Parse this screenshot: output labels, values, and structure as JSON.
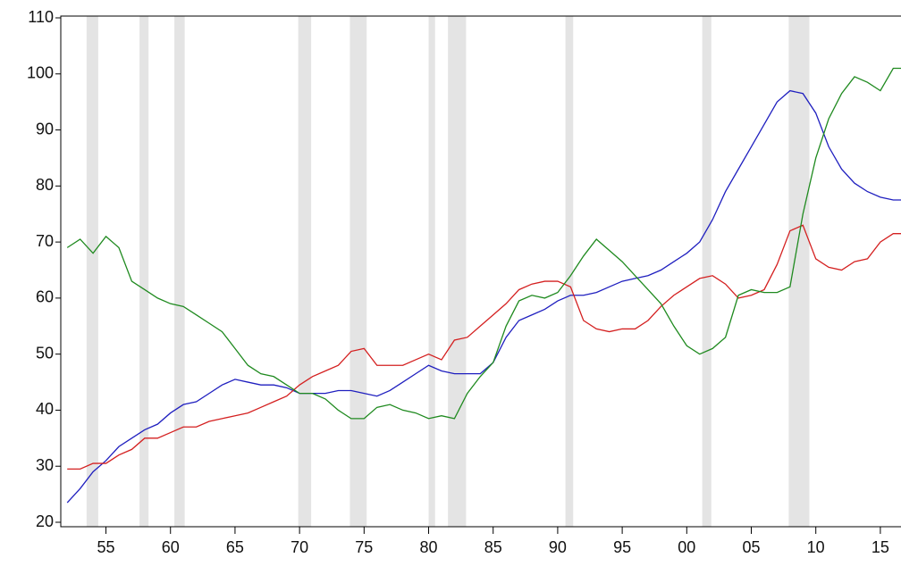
{
  "chart_data": {
    "type": "line",
    "x": [
      1952,
      1953,
      1954,
      1955,
      1956,
      1957,
      1958,
      1959,
      1960,
      1961,
      1962,
      1963,
      1964,
      1965,
      1966,
      1967,
      1968,
      1969,
      1970,
      1971,
      1972,
      1973,
      1974,
      1975,
      1976,
      1977,
      1978,
      1979,
      1980,
      1981,
      1982,
      1983,
      1984,
      1985,
      1986,
      1987,
      1988,
      1989,
      1990,
      1991,
      1992,
      1993,
      1994,
      1995,
      1996,
      1997,
      1998,
      1999,
      2000,
      2001,
      2002,
      2003,
      2004,
      2005,
      2006,
      2007,
      2008,
      2009,
      2010,
      2011,
      2012,
      2013,
      2014,
      2015,
      2016,
      2016.6
    ],
    "series": [
      {
        "color": "#1f1fbf",
        "values": [
          23.5,
          26,
          29,
          31,
          33.5,
          35,
          36.5,
          37.5,
          39.5,
          41,
          41.5,
          43,
          44.5,
          45.5,
          45,
          44.5,
          44.5,
          44,
          43,
          43,
          43,
          43.5,
          43.5,
          43,
          42.5,
          43.5,
          45,
          46.5,
          48,
          47,
          46.5,
          46.5,
          46.5,
          48.5,
          53,
          56,
          57,
          58,
          59.5,
          60.5,
          60.5,
          61,
          62,
          63,
          63.5,
          64,
          65,
          66.5,
          68,
          70,
          74,
          79,
          83,
          87,
          91,
          95,
          97,
          96.5,
          93,
          87,
          83,
          80.5,
          79,
          78,
          77.5,
          77.5
        ]
      },
      {
        "color": "#d42020",
        "values": [
          29.5,
          29.5,
          30.5,
          30.5,
          32,
          33,
          35,
          35,
          36,
          37,
          37,
          38,
          38.5,
          39,
          39.5,
          40.5,
          41.5,
          42.5,
          44.5,
          46,
          47,
          48,
          50.5,
          51,
          48,
          48,
          48,
          49,
          50,
          49,
          52.5,
          53,
          55,
          57,
          59,
          61.5,
          62.5,
          63,
          63,
          62,
          56,
          54.5,
          54,
          54.5,
          54.5,
          56,
          58.5,
          60.5,
          62,
          63.5,
          64,
          62.5,
          60,
          60.5,
          61.5,
          66,
          72,
          73,
          67,
          65.5,
          65,
          66.5,
          67,
          70,
          71.5,
          71.5
        ]
      },
      {
        "color": "#1f8a1f",
        "values": [
          69,
          70.5,
          68,
          71,
          69,
          63,
          61.5,
          60,
          59,
          58.5,
          57,
          55.5,
          54,
          51,
          48,
          46.5,
          46,
          44.5,
          43,
          43,
          42,
          40,
          38.5,
          38.5,
          40.5,
          41,
          40,
          39.5,
          38.5,
          39,
          38.5,
          43,
          46,
          48.5,
          55,
          59.5,
          60.5,
          60,
          61,
          64,
          67.5,
          70.5,
          68.5,
          66.5,
          64,
          61.5,
          59,
          55,
          51.5,
          50,
          51,
          53,
          60.5,
          61.5,
          61,
          61,
          62,
          75,
          85,
          92,
          96.5,
          99.5,
          98.5,
          97,
          101,
          101
        ]
      }
    ],
    "recessions": [
      [
        1953.5,
        1954.4
      ],
      [
        1957.6,
        1958.3
      ],
      [
        1960.3,
        1961.1
      ],
      [
        1969.9,
        1970.9
      ],
      [
        1973.9,
        1975.2
      ],
      [
        1980.0,
        1980.5
      ],
      [
        1981.5,
        1982.9
      ],
      [
        1990.6,
        1991.2
      ],
      [
        2001.2,
        2001.9
      ],
      [
        2007.9,
        2009.5
      ]
    ],
    "recession_color": "#e4e4e4",
    "xlim": [
      1951.5,
      2016.6
    ],
    "xticks": [
      {
        "value": 1955,
        "label": "55"
      },
      {
        "value": 1960,
        "label": "60"
      },
      {
        "value": 1965,
        "label": "65"
      },
      {
        "value": 1970,
        "label": "70"
      },
      {
        "value": 1975,
        "label": "75"
      },
      {
        "value": 1980,
        "label": "80"
      },
      {
        "value": 1985,
        "label": "85"
      },
      {
        "value": 1990,
        "label": "90"
      },
      {
        "value": 1995,
        "label": "95"
      },
      {
        "value": 2000,
        "label": "00"
      },
      {
        "value": 2005,
        "label": "05"
      },
      {
        "value": 2010,
        "label": "10"
      },
      {
        "value": 2015,
        "label": "15"
      }
    ],
    "ylim": [
      20,
      110
    ],
    "yticks": [
      20,
      30,
      40,
      50,
      60,
      70,
      80,
      90,
      100,
      110
    ]
  }
}
